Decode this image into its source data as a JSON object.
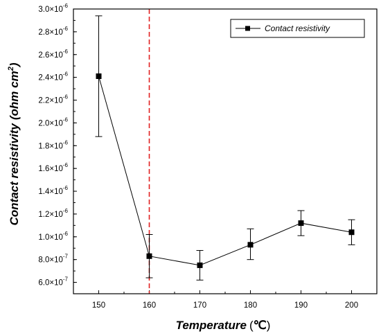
{
  "chart_data": {
    "type": "scatter",
    "xlabel": "Temperature",
    "xunit": "℃",
    "ylabel": "Contact resistivity",
    "yunit_base": "ohm cm",
    "yunit_exp": "2",
    "x_ticks": [
      150,
      160,
      170,
      180,
      190,
      200
    ],
    "xlim": [
      145,
      205
    ],
    "ylim": [
      5e-07,
      3e-06
    ],
    "y_ticks": [
      {
        "v": 6e-07,
        "m": "6.0",
        "e": "-7"
      },
      {
        "v": 8e-07,
        "m": "8.0",
        "e": "-7"
      },
      {
        "v": 1e-06,
        "m": "1.0",
        "e": "-6"
      },
      {
        "v": 1.2e-06,
        "m": "1.2",
        "e": "-6"
      },
      {
        "v": 1.4e-06,
        "m": "1.4",
        "e": "-6"
      },
      {
        "v": 1.6e-06,
        "m": "1.6",
        "e": "-6"
      },
      {
        "v": 1.8e-06,
        "m": "1.8",
        "e": "-6"
      },
      {
        "v": 2e-06,
        "m": "2.0",
        "e": "-6"
      },
      {
        "v": 2.2e-06,
        "m": "2.2",
        "e": "-6"
      },
      {
        "v": 2.4e-06,
        "m": "2.4",
        "e": "-6"
      },
      {
        "v": 2.6e-06,
        "m": "2.6",
        "e": "-6"
      },
      {
        "v": 2.8e-06,
        "m": "2.8",
        "e": "-6"
      },
      {
        "v": 3e-06,
        "m": "3.0",
        "e": "-6"
      }
    ],
    "tick_times": "×10",
    "series": [
      {
        "name": "Contact resistivity",
        "color": "#000000",
        "points": [
          {
            "x": 150,
            "y": 2.41e-06,
            "err_lo": 1.88e-06,
            "err_hi": 2.94e-06
          },
          {
            "x": 160,
            "y": 8.3e-07,
            "err_lo": 6.4e-07,
            "err_hi": 1.02e-06
          },
          {
            "x": 170,
            "y": 7.5e-07,
            "err_lo": 6.2e-07,
            "err_hi": 8.8e-07
          },
          {
            "x": 180,
            "y": 9.3e-07,
            "err_lo": 8e-07,
            "err_hi": 1.07e-06
          },
          {
            "x": 190,
            "y": 1.12e-06,
            "err_lo": 1.01e-06,
            "err_hi": 1.23e-06
          },
          {
            "x": 200,
            "y": 1.04e-06,
            "err_lo": 9.3e-07,
            "err_hi": 1.15e-06
          }
        ]
      }
    ],
    "reference_line": {
      "x": 160,
      "color": "#e02020",
      "style": "dashed"
    },
    "legend": {
      "placement": "top-right",
      "label": "Contact resistivity"
    },
    "grid": false
  }
}
